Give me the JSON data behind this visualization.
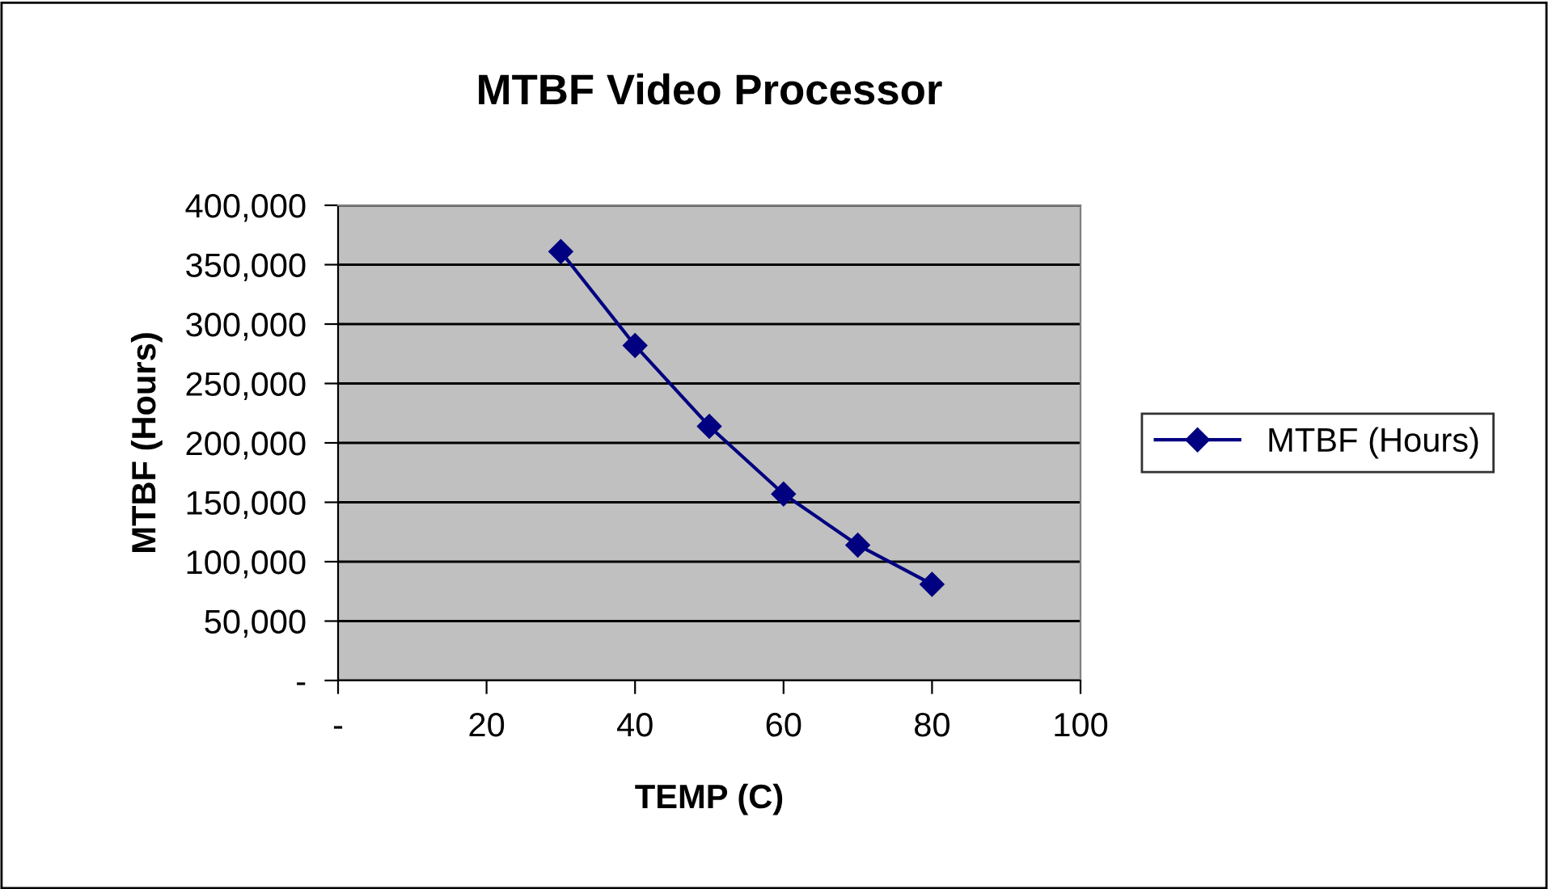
{
  "chart_data": {
    "type": "line",
    "title": "MTBF Video Processor",
    "xlabel": "TEMP (C)",
    "ylabel": "MTBF (Hours)",
    "x": [
      30,
      40,
      50,
      60,
      70,
      80
    ],
    "series": [
      {
        "name": "MTBF (Hours)",
        "color": "#000080",
        "values": [
          361000,
          282000,
          214000,
          157000,
          114000,
          81000
        ]
      }
    ],
    "xlim": [
      0,
      100
    ],
    "xticks": [
      {
        "value": 0,
        "label": "-"
      },
      20,
      40,
      60,
      80,
      100
    ],
    "ylim": [
      0,
      400000
    ],
    "yticks": [
      {
        "value": 0,
        "label": "-"
      },
      {
        "value": 50000,
        "label": "50,000"
      },
      {
        "value": 100000,
        "label": "100,000"
      },
      {
        "value": 150000,
        "label": "150,000"
      },
      {
        "value": 200000,
        "label": "200,000"
      },
      {
        "value": 250000,
        "label": "250,000"
      },
      {
        "value": 300000,
        "label": "300,000"
      },
      {
        "value": 350000,
        "label": "350,000"
      },
      {
        "value": 400000,
        "label": "400,000"
      }
    ],
    "grid": "y",
    "legend": "right",
    "marker": "diamond",
    "line_style": "solid"
  }
}
